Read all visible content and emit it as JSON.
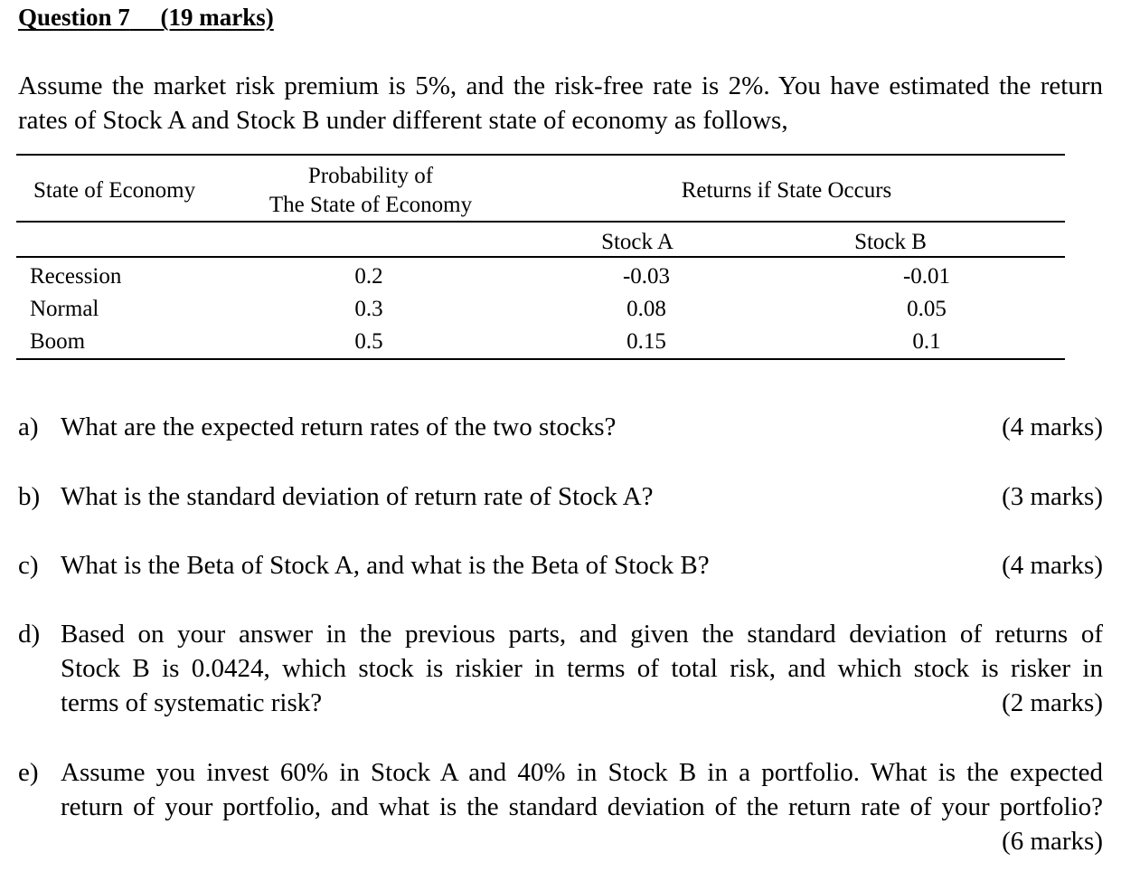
{
  "heading": {
    "question": "Question 7",
    "marks": "(19 marks)"
  },
  "intro": {
    "line1": "Assume the market risk premium is 5%, and the risk-free rate is 2%. You have estimated the return",
    "line2": "rates of Stock A and Stock B under different state of economy as follows,"
  },
  "table": {
    "header": {
      "state": "State of Economy",
      "prob_line1": "Probability of",
      "prob_line2": "The State of Economy",
      "returns": "Returns if State Occurs",
      "stock_a": "Stock A",
      "stock_b": "Stock B"
    },
    "rows": [
      {
        "state": "Recession",
        "prob": "0.2",
        "a": "-0.03",
        "b": "-0.01"
      },
      {
        "state": "Normal",
        "prob": "0.3",
        "a": "0.08",
        "b": "0.05"
      },
      {
        "state": "Boom",
        "prob": "0.5",
        "a": "0.15",
        "b": "0.1"
      }
    ]
  },
  "questions": {
    "a": {
      "letter": "a)",
      "text": "What are the expected return rates of the two stocks?",
      "marks": "(4 marks)"
    },
    "b": {
      "letter": "b)",
      "text": "What is the standard deviation of return rate of Stock A?",
      "marks": "(3 marks)"
    },
    "c": {
      "letter": "c)",
      "text": "What is the Beta of Stock A, and what is the Beta of Stock B?",
      "marks": "(4 marks)"
    },
    "d": {
      "letter": "d)",
      "line1": "Based on your answer in the previous parts, and given the standard deviation of returns of",
      "line2": "Stock B is 0.0424, which stock is riskier in terms of total risk, and which stock is risker in",
      "line3": "terms of systematic risk?",
      "marks": "(2 marks)"
    },
    "e": {
      "letter": "e)",
      "line1": "Assume you invest 60% in Stock A and 40% in Stock B in a portfolio. What is the expected",
      "line2": "return of your portfolio, and what is the standard deviation of the return rate of your portfolio?",
      "marks": "(6 marks)"
    }
  }
}
